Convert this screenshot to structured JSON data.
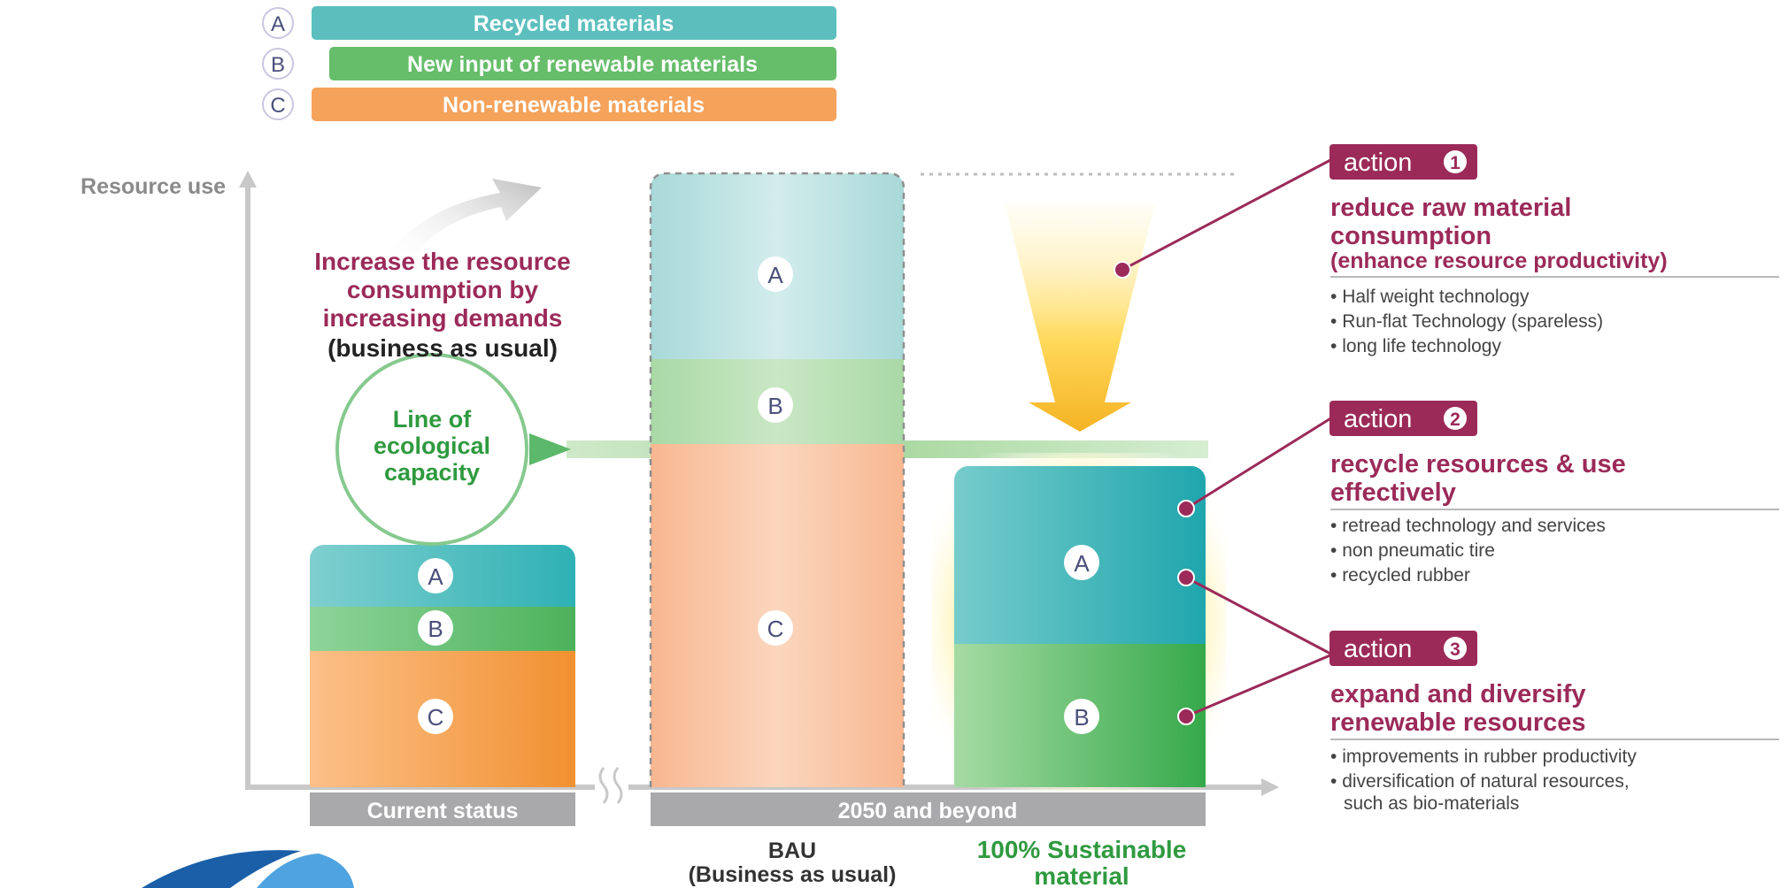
{
  "legend": {
    "items": [
      {
        "letter": "A",
        "label": "Recycled materials",
        "color": "#5cbfbd"
      },
      {
        "letter": "B",
        "label": "New input of renewable materials",
        "color": "#66bd6a"
      },
      {
        "letter": "C",
        "label": "Non-renewable materials",
        "color": "#f5a25b"
      }
    ]
  },
  "axis": {
    "y_label": "Resource use"
  },
  "annotations": {
    "increase_lines": [
      "Increase the resource",
      "consumption by",
      "increasing demands"
    ],
    "business_as_usual": "(business as usual)",
    "ecological_lines": [
      "Line of",
      "ecological",
      "capacity"
    ]
  },
  "bars": {
    "current": {
      "a": "A",
      "b": "B",
      "c": "C"
    },
    "bau": {
      "a": "A",
      "b": "B",
      "c": "C"
    },
    "sustainable": {
      "a": "A",
      "b": "B"
    }
  },
  "bottom_labels": {
    "current_status": "Current status",
    "future": "2050 and beyond",
    "bau_lines": [
      "BAU",
      "(Business as usual)"
    ],
    "sustainable_lines": [
      "100% Sustainable",
      "material"
    ]
  },
  "actions": [
    {
      "badge_text": "action",
      "number": "1",
      "title_lines": [
        "reduce raw material",
        "consumption"
      ],
      "subtitle": "(enhance resource productivity)",
      "bullets": [
        "Half weight technology",
        "Run-flat Technology (spareless)",
        "long life technology"
      ]
    },
    {
      "badge_text": "action",
      "number": "2",
      "title_lines": [
        "recycle resources & use",
        "effectively"
      ],
      "subtitle": "",
      "bullets": [
        "retread technology and services",
        "non pneumatic tire",
        "recycled rubber"
      ]
    },
    {
      "badge_text": "action",
      "number": "3",
      "title_lines": [
        "expand and diversify",
        "renewable resources"
      ],
      "subtitle": "",
      "bullets": [
        "improvements in rubber productivity",
        "diversification of natural resources,",
        "such as bio-materials"
      ]
    }
  ],
  "colors": {
    "accent": "#9b2a59",
    "green_text": "#2f9a3f",
    "axis": "#c8c8c8",
    "baseline_label_bg": "#a9a9ab",
    "logo_blue": "#1a5fa8"
  }
}
